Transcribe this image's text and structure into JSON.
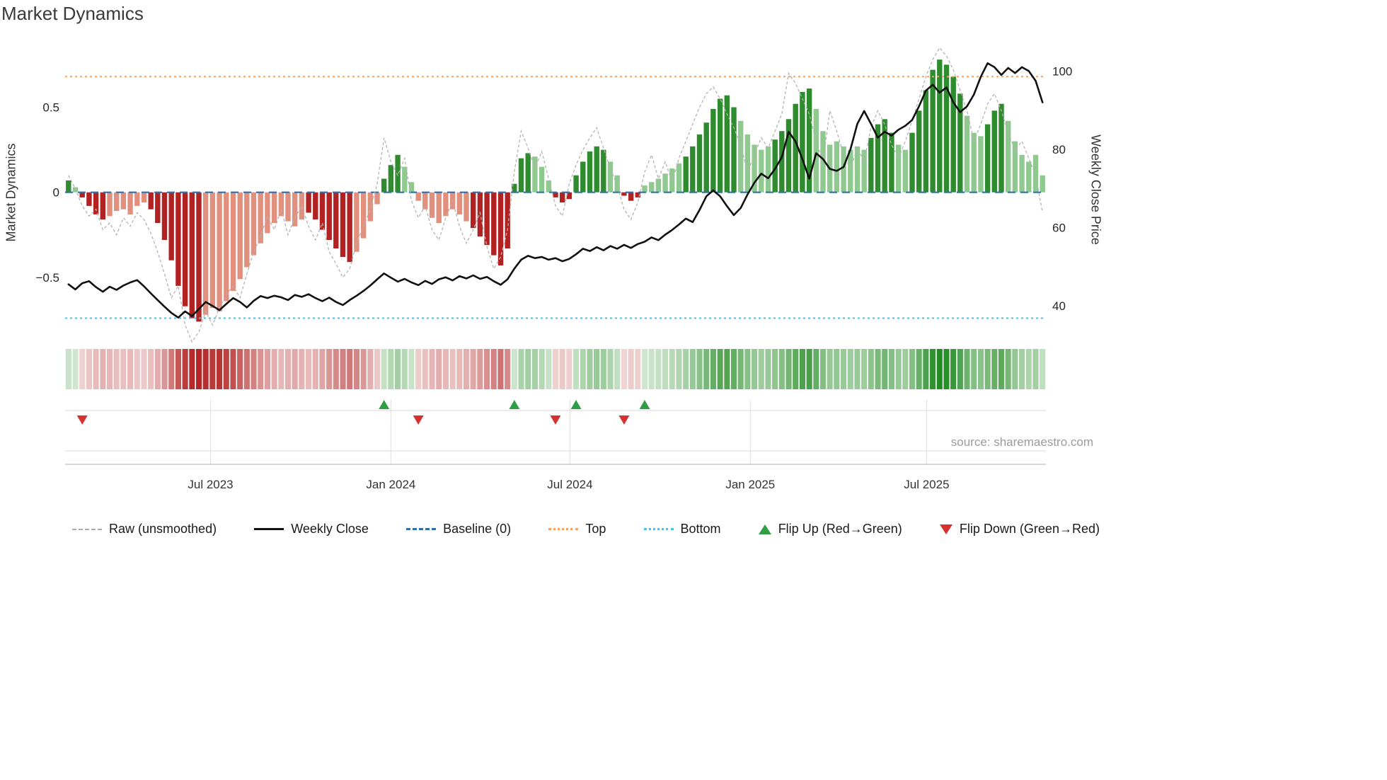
{
  "title": "Market Dynamics",
  "source_text": "source: sharemaestro.com",
  "colors": {
    "bar_dark_green": "#2e8b2e",
    "bar_light_green": "#90c990",
    "bar_dark_red": "#b22222",
    "bar_light_red": "#e2907e",
    "raw_line": "#b3b3b3",
    "close_line": "#111111",
    "baseline": "#2f6fb0",
    "top_line": "#f3a25f",
    "bottom_line": "#45c3e8",
    "flip_up": "#2f9e44",
    "flip_down": "#d63031",
    "heat_green": "#228b22",
    "heat_red": "#b22222",
    "grid": "#e0e0e0",
    "rule": "#d9d9d9",
    "axis_line": "#bfbfbf",
    "axis_text": "#262626",
    "tick_text": "#333333"
  },
  "legend": {
    "items": [
      {
        "label": "Raw (unsmoothed)",
        "swatch": "dashed-line",
        "color": "#aaaaaa"
      },
      {
        "label": "Weekly Close",
        "swatch": "solid-line",
        "color": "#111111"
      },
      {
        "label": "Baseline (0)",
        "swatch": "dashed-line",
        "color": "#2f6fb0"
      },
      {
        "label": "Top",
        "swatch": "dotted-line",
        "color": "#f3a25f"
      },
      {
        "label": "Bottom",
        "swatch": "dotted-line",
        "color": "#45c3e8"
      },
      {
        "label": "Flip Up (Red→Green)",
        "swatch": "triangle-up",
        "color": "#2f9e44"
      },
      {
        "label": "Flip Down (Green→Red)",
        "swatch": "triangle-down",
        "color": "#d63031"
      }
    ]
  },
  "chart_data": {
    "type": "combo-bar-line",
    "title": "Market Dynamics",
    "x_start": "2023-02-06",
    "x_step": "1 week",
    "n_points": 143,
    "x_axis": {
      "ticks": [
        {
          "label": "Jul 2023",
          "pos": 20.7
        },
        {
          "label": "Jan 2024",
          "pos": 47.0
        },
        {
          "label": "Jul 2024",
          "pos": 73.1
        },
        {
          "label": "Jan 2025",
          "pos": 99.4
        },
        {
          "label": "Jul 2025",
          "pos": 125.1
        }
      ]
    },
    "left_axis": {
      "label": "Market Dynamics",
      "range": [
        -0.9,
        0.86
      ],
      "ticks": [
        {
          "v": 0.5,
          "label": "0.5"
        },
        {
          "v": 0,
          "label": "0"
        },
        {
          "v": -0.5,
          "label": "−0.5"
        }
      ]
    },
    "right_axis": {
      "label": "Weekly Close Price",
      "range": [
        29.9,
        106.4
      ],
      "ticks": [
        {
          "v": 100,
          "label": "100"
        },
        {
          "v": 80,
          "label": "80"
        },
        {
          "v": 60,
          "label": "60"
        },
        {
          "v": 40,
          "label": "40"
        }
      ]
    },
    "reference_lines": {
      "baseline": 0,
      "top": 0.68,
      "bottom": -0.74
    },
    "series": {
      "oscillator": {
        "name": "Market Dynamics (bars)",
        "values": [
          0.07,
          0.03,
          -0.03,
          -0.08,
          -0.13,
          -0.16,
          -0.14,
          -0.11,
          -0.1,
          -0.13,
          -0.08,
          -0.06,
          -0.1,
          -0.18,
          -0.28,
          -0.4,
          -0.55,
          -0.67,
          -0.74,
          -0.76,
          -0.72,
          -0.68,
          -0.7,
          -0.64,
          -0.58,
          -0.51,
          -0.44,
          -0.37,
          -0.3,
          -0.24,
          -0.18,
          -0.14,
          -0.17,
          -0.2,
          -0.16,
          -0.12,
          -0.16,
          -0.22,
          -0.28,
          -0.33,
          -0.38,
          -0.41,
          -0.35,
          -0.27,
          -0.17,
          -0.07,
          0.08,
          0.16,
          0.22,
          0.15,
          0.06,
          -0.05,
          -0.1,
          -0.15,
          -0.18,
          -0.14,
          -0.1,
          -0.13,
          -0.17,
          -0.21,
          -0.26,
          -0.31,
          -0.37,
          -0.43,
          -0.33,
          0.05,
          0.2,
          0.23,
          0.21,
          0.15,
          0.07,
          -0.03,
          -0.06,
          -0.04,
          0.1,
          0.18,
          0.24,
          0.27,
          0.25,
          0.18,
          0.1,
          -0.02,
          -0.05,
          -0.03,
          0.04,
          0.06,
          0.08,
          0.11,
          0.14,
          0.17,
          0.21,
          0.27,
          0.34,
          0.41,
          0.49,
          0.55,
          0.57,
          0.5,
          0.42,
          0.34,
          0.28,
          0.25,
          0.27,
          0.31,
          0.36,
          0.43,
          0.52,
          0.59,
          0.61,
          0.49,
          0.36,
          0.28,
          0.3,
          0.27,
          0.25,
          0.27,
          0.25,
          0.32,
          0.4,
          0.43,
          0.35,
          0.28,
          0.25,
          0.35,
          0.48,
          0.6,
          0.72,
          0.78,
          0.75,
          0.68,
          0.58,
          0.45,
          0.35,
          0.33,
          0.4,
          0.48,
          0.52,
          0.42,
          0.3,
          0.22,
          0.18,
          0.22,
          0.1
        ],
        "bar_color_classes": [
          "dg",
          "lg",
          "dr",
          "dr",
          "dr",
          "dr",
          "lr",
          "lr",
          "lr",
          "lr",
          "lr",
          "lr",
          "dr",
          "dr",
          "dr",
          "dr",
          "dr",
          "dr",
          "dr",
          "dr",
          "lr",
          "lr",
          "lr",
          "lr",
          "lr",
          "lr",
          "lr",
          "lr",
          "lr",
          "lr",
          "lr",
          "lr",
          "lr",
          "lr",
          "lr",
          "dr",
          "dr",
          "dr",
          "dr",
          "dr",
          "dr",
          "dr",
          "lr",
          "lr",
          "lr",
          "lr",
          "dg",
          "dg",
          "dg",
          "lg",
          "lg",
          "lr",
          "lr",
          "lr",
          "lr",
          "lr",
          "lr",
          "lr",
          "lr",
          "dr",
          "dr",
          "dr",
          "dr",
          "dr",
          "dr",
          "dg",
          "dg",
          "dg",
          "lg",
          "lg",
          "lg",
          "dr",
          "dr",
          "dr",
          "dg",
          "dg",
          "dg",
          "dg",
          "dg",
          "lg",
          "lg",
          "dr",
          "dr",
          "dr",
          "lg",
          "lg",
          "lg",
          "lg",
          "lg",
          "lg",
          "dg",
          "dg",
          "dg",
          "dg",
          "dg",
          "dg",
          "dg",
          "dg",
          "lg",
          "lg",
          "lg",
          "lg",
          "lg",
          "dg",
          "dg",
          "dg",
          "dg",
          "dg",
          "dg",
          "lg",
          "lg",
          "lg",
          "lg",
          "lg",
          "lg",
          "lg",
          "lg",
          "dg",
          "dg",
          "dg",
          "dg",
          "lg",
          "lg",
          "dg",
          "dg",
          "dg",
          "dg",
          "dg",
          "dg",
          "dg",
          "dg",
          "lg",
          "lg",
          "lg",
          "dg",
          "dg",
          "dg",
          "lg",
          "lg",
          "lg",
          "lg",
          "lg",
          "lg"
        ]
      },
      "raw": {
        "name": "Raw (unsmoothed)",
        "values": [
          0.1,
          0.02,
          -0.08,
          -0.14,
          -0.1,
          -0.22,
          -0.18,
          -0.25,
          -0.15,
          -0.2,
          -0.12,
          -0.16,
          -0.24,
          -0.35,
          -0.48,
          -0.62,
          -0.55,
          -0.78,
          -0.88,
          -0.82,
          -0.7,
          -0.78,
          -0.68,
          -0.6,
          -0.55,
          -0.62,
          -0.48,
          -0.35,
          -0.26,
          -0.14,
          -0.22,
          -0.1,
          -0.25,
          -0.15,
          -0.08,
          -0.2,
          -0.28,
          -0.18,
          -0.35,
          -0.42,
          -0.5,
          -0.45,
          -0.3,
          -0.2,
          -0.1,
          0.05,
          0.32,
          0.18,
          0.1,
          0.2,
          -0.05,
          -0.15,
          -0.08,
          -0.22,
          -0.28,
          -0.15,
          -0.05,
          -0.2,
          -0.3,
          -0.22,
          -0.12,
          -0.32,
          -0.45,
          -0.38,
          -0.22,
          0.12,
          0.36,
          0.26,
          0.14,
          0.24,
          0.08,
          -0.08,
          -0.14,
          0.05,
          0.16,
          0.25,
          0.32,
          0.38,
          0.26,
          0.14,
          0.04,
          -0.1,
          -0.16,
          -0.06,
          0.12,
          0.22,
          0.08,
          0.18,
          0.06,
          0.2,
          0.3,
          0.4,
          0.5,
          0.58,
          0.62,
          0.55,
          0.46,
          0.38,
          0.28,
          0.12,
          0.22,
          0.32,
          0.26,
          0.36,
          0.46,
          0.7,
          0.64,
          0.55,
          0.46,
          0.3,
          0.18,
          0.48,
          0.36,
          0.22,
          0.14,
          0.26,
          0.18,
          0.38,
          0.48,
          0.4,
          0.28,
          0.2,
          0.3,
          0.42,
          0.55,
          0.68,
          0.78,
          0.85,
          0.8,
          0.72,
          0.6,
          0.48,
          0.3,
          0.4,
          0.52,
          0.58,
          0.48,
          0.35,
          0.25,
          0.3,
          0.2,
          0.1,
          -0.12
        ]
      },
      "weekly_close": {
        "name": "Weekly Close",
        "values": [
          45.5,
          44.2,
          45.8,
          46.3,
          44.8,
          43.6,
          44.9,
          44.1,
          45.2,
          46.0,
          46.6,
          45.0,
          43.2,
          41.5,
          39.8,
          38.2,
          37.0,
          38.6,
          37.4,
          39.2,
          41.0,
          40.0,
          38.9,
          40.5,
          42.0,
          41.0,
          39.6,
          41.3,
          42.5,
          42.0,
          42.6,
          42.2,
          41.5,
          42.8,
          42.3,
          43.0,
          42.0,
          41.2,
          42.1,
          41.0,
          40.2,
          41.5,
          42.6,
          43.8,
          45.2,
          46.8,
          48.3,
          47.2,
          46.2,
          46.9,
          46.0,
          45.3,
          46.4,
          45.6,
          46.8,
          47.3,
          46.5,
          47.6,
          47.0,
          47.8,
          46.9,
          47.4,
          46.3,
          45.4,
          46.8,
          49.5,
          51.8,
          52.8,
          52.2,
          52.5,
          51.8,
          52.2,
          51.4,
          52.0,
          53.2,
          54.6,
          54.0,
          55.0,
          54.2,
          55.3,
          54.6,
          55.6,
          54.8,
          55.8,
          56.4,
          57.5,
          56.8,
          58.2,
          59.4,
          60.8,
          62.3,
          61.4,
          64.5,
          68.0,
          69.5,
          68.0,
          65.5,
          63.2,
          65.0,
          68.5,
          71.5,
          73.8,
          72.6,
          75.0,
          78.0,
          84.5,
          82.0,
          77.5,
          72.5,
          79.0,
          77.5,
          75.0,
          74.5,
          75.5,
          80.0,
          86.5,
          89.8,
          86.5,
          83.0,
          84.5,
          83.5,
          85.0,
          86.0,
          87.5,
          91.0,
          95.0,
          96.5,
          94.5,
          95.8,
          92.0,
          89.5,
          91.0,
          94.0,
          98.5,
          102.0,
          101.0,
          99.0,
          100.8,
          99.5,
          101.0,
          100.0,
          97.5,
          92.0
        ]
      }
    },
    "flip_up_indices": [
      46,
      65,
      74,
      84
    ],
    "flip_down_indices": [
      2,
      51,
      71,
      81
    ]
  }
}
